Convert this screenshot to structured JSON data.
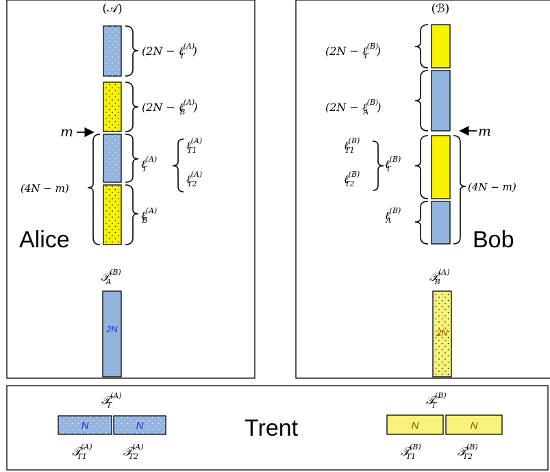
{
  "colors": {
    "blue": "#93b4dd",
    "yellow": "#f7f200",
    "light_yellow": "#f8f27a",
    "blue_text": "#1c2ee0",
    "brown_text": "#8a5a00"
  },
  "alice": {
    "label": "Alice",
    "set_label": "(𝒜)",
    "m_label": "m",
    "brace_top": "(2N − ℓ",
    "brace_top_sup": "(A)",
    "brace_top_sub": "T",
    "brace_mid": "(2N − ℓ",
    "brace_mid_sup": "(A)",
    "brace_mid_sub": "B",
    "brace_left": "(4N − m)",
    "lt_label": "ℓ",
    "lt_sup": "(A)",
    "lt_sub": "T",
    "lt1_sup": "(A)",
    "lt1_sub": "T1",
    "lt2_sup": "(A)",
    "lt2_sub": "T2",
    "lb_sup": "(A)",
    "lb_sub": "B",
    "token_label": "𝒯",
    "token_sup": "(B)",
    "token_sub": "A",
    "token_text": "2N"
  },
  "bob": {
    "label": "Bob",
    "set_label": "(ℬ)",
    "m_label": "m",
    "brace_top": "(2N − ℓ",
    "brace_top_sup": "(B)",
    "brace_top_sub": "T",
    "brace_mid": "(2N − ℓ",
    "brace_mid_sup": "(B)",
    "brace_mid_sub": "A",
    "brace_right": "(4N − m)",
    "lt_sup": "(B)",
    "lt_sub": "T",
    "lt1_sup": "(B)",
    "lt1_sub": "T1",
    "lt2_sup": "(B)",
    "lt2_sub": "T2",
    "la_sup": "(B)",
    "la_sub": "A",
    "token_sup": "(A)",
    "token_sub": "B",
    "token_text": "2N"
  },
  "trent": {
    "label": "Trent",
    "a_sup": "(A)",
    "a_sub": "T",
    "a1_sup": "(A)",
    "a1_sub": "T1",
    "a2_sup": "(A)",
    "a2_sub": "T2",
    "b_sup": "(B)",
    "b_sub": "T",
    "b1_sup": "(B)",
    "b1_sub": "T1",
    "b2_sup": "(B)",
    "b2_sub": "T2",
    "block_text": "N"
  }
}
